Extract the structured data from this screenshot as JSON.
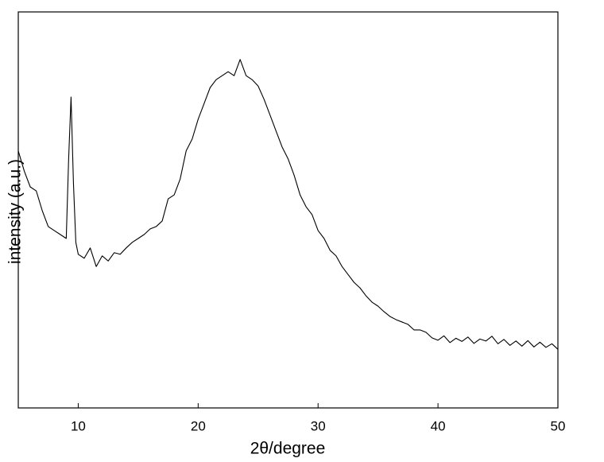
{
  "chart_data": {
    "type": "line",
    "xlabel": "2θ/degree",
    "ylabel": "intensity (a.u.)",
    "color": "#000000",
    "xlim": [
      5,
      50
    ],
    "ylim": [
      0,
      100
    ],
    "xticks": [
      10,
      20,
      30,
      40,
      50
    ],
    "x": [
      5,
      5.5,
      6,
      6.5,
      7,
      7.5,
      8,
      8.5,
      9,
      9.2,
      9.4,
      9.6,
      9.8,
      10,
      10.5,
      11,
      11.5,
      12,
      12.5,
      13,
      13.5,
      14,
      14.5,
      15,
      15.5,
      16,
      16.5,
      17,
      17.5,
      18,
      18.5,
      19,
      19.5,
      20,
      20.5,
      21,
      21.5,
      22,
      22.5,
      23,
      23.5,
      24,
      24.5,
      25,
      25.5,
      26,
      26.5,
      27,
      27.5,
      28,
      28.5,
      29,
      29.5,
      30,
      30.5,
      31,
      31.5,
      32,
      32.5,
      33,
      33.5,
      34,
      34.5,
      35,
      35.5,
      36,
      36.5,
      37,
      37.5,
      38,
      38.5,
      39,
      39.5,
      40,
      40.5,
      41,
      41.5,
      42,
      42.5,
      43,
      43.5,
      44,
      44.5,
      45,
      45.5,
      46,
      46.5,
      47,
      47.5,
      48,
      48.5,
      49,
      49.5,
      50
    ],
    "values": [
      64.9,
      59.8,
      55.8,
      54.8,
      49.8,
      45.8,
      44.8,
      43.8,
      42.8,
      62.9,
      78.5,
      56.8,
      41.8,
      38.8,
      37.8,
      40.4,
      35.7,
      38.4,
      37.1,
      39.2,
      38.8,
      40.4,
      41.8,
      42.8,
      43.8,
      45.2,
      45.8,
      47.2,
      52.8,
      53.8,
      57.8,
      64.9,
      67.9,
      72.9,
      76.9,
      80.9,
      82.9,
      83.9,
      84.9,
      83.9,
      88.0,
      83.9,
      82.9,
      81.3,
      77.9,
      73.9,
      69.9,
      65.9,
      62.9,
      58.8,
      53.8,
      50.8,
      48.8,
      44.8,
      42.8,
      39.8,
      38.4,
      35.7,
      33.7,
      31.7,
      30.3,
      28.3,
      26.7,
      25.7,
      24.3,
      23.1,
      22.3,
      21.7,
      21.1,
      19.7,
      19.7,
      19.1,
      17.7,
      17.1,
      18.2,
      16.5,
      17.6,
      16.8,
      17.9,
      16.3,
      17.4,
      16.9,
      18.1,
      16.2,
      17.3,
      15.8,
      16.9,
      15.6,
      17.0,
      15.4,
      16.6,
      15.3,
      16.2,
      14.8
    ]
  }
}
